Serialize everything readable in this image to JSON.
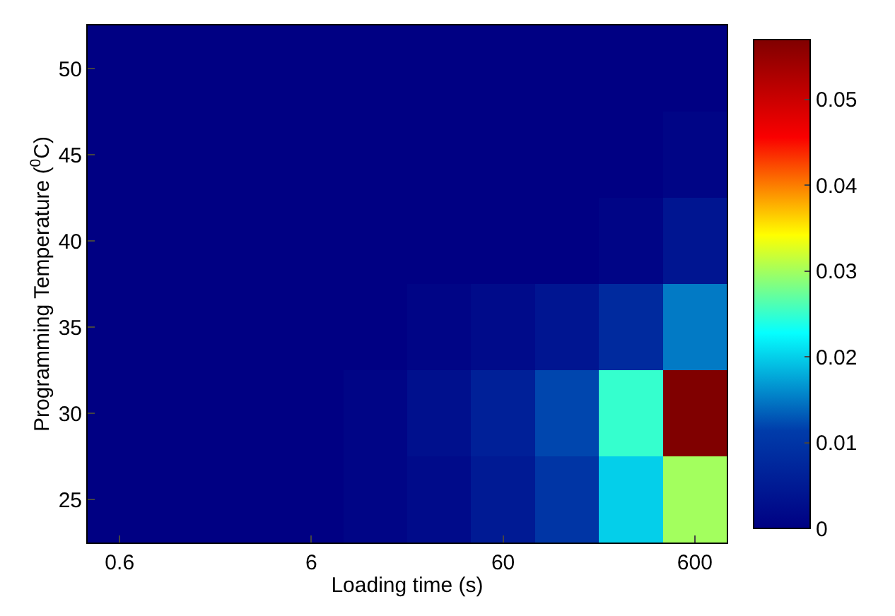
{
  "chart_data": {
    "type": "heatmap",
    "xlabel": "Loading time (s)",
    "ylabel": "Programming Temperature ($^{0}$C)",
    "categories": [
      "0.6",
      null,
      null,
      "6",
      null,
      null,
      "60",
      null,
      null,
      "600"
    ],
    "y_categories": [
      "50",
      "45",
      "40",
      "35",
      "30",
      "25"
    ],
    "cells": [
      [
        0,
        0,
        0,
        0,
        0,
        0,
        0,
        0,
        0,
        0
      ],
      [
        0,
        0,
        0,
        0,
        0,
        0,
        0,
        0,
        0,
        0.001
      ],
      [
        0,
        0,
        0,
        0,
        0,
        0,
        0,
        0,
        0.001,
        0.004
      ],
      [
        0,
        0,
        0,
        0,
        0,
        0.001,
        0.002,
        0.004,
        0.008,
        0.015
      ],
      [
        0,
        0,
        0,
        0,
        0.001,
        0.003,
        0.006,
        0.012,
        0.025,
        0.057
      ],
      [
        0,
        0,
        0,
        0,
        0.001,
        0.002,
        0.005,
        0.01,
        0.02,
        0.03
      ]
    ],
    "clim": [
      0,
      0.057
    ],
    "cticks": [
      0,
      0.01,
      0.02,
      0.03,
      0.04,
      0.05
    ]
  }
}
